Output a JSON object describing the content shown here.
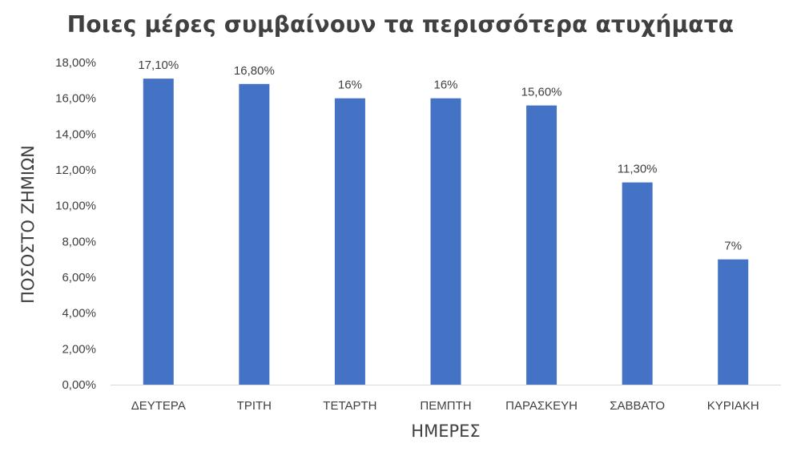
{
  "chart_data": {
    "type": "bar",
    "title": "Ποιες μέρες συμβαίνουν τα περισσότερα ατυχήματα",
    "xlabel": "ΗΜΕΡΕΣ",
    "ylabel": "ΠΟΣΟΣΤΟ ΖΗΜΙΩΝ",
    "categories": [
      "ΔΕΥΤΕΡΑ",
      "ΤΡΙΤΗ",
      "ΤΕΤΑΡΤΗ",
      "ΠΕΜΠΤΗ",
      "ΠΑΡΑΣΚΕΥΗ",
      "ΣΑΒΒΑΤΟ",
      "ΚΥΡΙΑΚΗ"
    ],
    "values": [
      17.1,
      16.8,
      16,
      16,
      15.6,
      11.3,
      7
    ],
    "data_labels": [
      "17,10%",
      "16,80%",
      "16%",
      "16%",
      "15,60%",
      "11,30%",
      "7%"
    ],
    "ylim": [
      0,
      18
    ],
    "y_ticks": [
      0,
      2,
      4,
      6,
      8,
      10,
      12,
      14,
      16,
      18
    ],
    "y_tick_labels": [
      "0,00%",
      "2,00%",
      "4,00%",
      "6,00%",
      "8,00%",
      "10,00%",
      "12,00%",
      "14,00%",
      "16,00%",
      "18,00%"
    ],
    "grid": false,
    "legend": "none",
    "bar_color": "#4472C4",
    "axis_color": "#D9D9D9"
  }
}
